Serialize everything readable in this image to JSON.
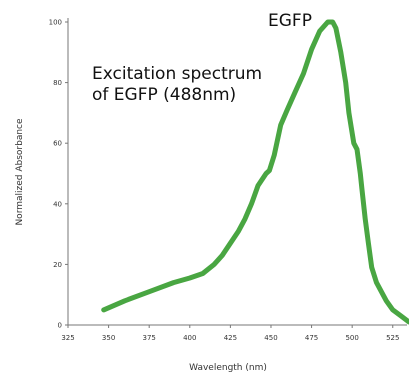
{
  "chart_data": {
    "type": "line",
    "title": "",
    "xlabel": "Wavelength (nm)",
    "ylabel": "Normalized Absorbance",
    "xlim": [
      325,
      535
    ],
    "ylim": [
      0,
      100
    ],
    "x_ticks": [
      325,
      350,
      375,
      400,
      425,
      450,
      475,
      500,
      525
    ],
    "y_ticks": [
      0,
      20,
      40,
      60,
      80,
      100
    ],
    "x_tick_labels": [
      "325",
      "350",
      "375",
      "400",
      "425",
      "450",
      "475",
      "500",
      "525"
    ],
    "y_tick_labels": [
      "0",
      "20",
      "40",
      "60",
      "80",
      "100"
    ],
    "grid": false,
    "legend": "none",
    "series": [
      {
        "name": "EGFP",
        "color": "#49a642",
        "x": [
          347,
          360,
          375,
          390,
          400,
          408,
          415,
          420,
          425,
          430,
          434,
          438,
          442,
          447,
          449,
          452,
          456,
          460,
          465,
          470,
          475,
          480,
          485,
          488,
          490,
          493,
          496,
          498,
          501,
          503,
          505,
          506,
          508,
          510,
          512,
          515,
          518,
          521,
          525,
          530,
          535
        ],
        "values": [
          5,
          8,
          11,
          14,
          15.5,
          17,
          20,
          23,
          27,
          31,
          35,
          40,
          46,
          50,
          51,
          56,
          66,
          71,
          77,
          83,
          91,
          97,
          100,
          100,
          98,
          90,
          80,
          70,
          60,
          58,
          50,
          45,
          35,
          27,
          19,
          14,
          11,
          8,
          5,
          3,
          1
        ]
      }
    ],
    "annotations": [
      {
        "id": "series-label",
        "text": "EGFP"
      },
      {
        "id": "caption-line1",
        "text": "Excitation spectrum"
      },
      {
        "id": "caption-line2",
        "text": "of EGFP (488nm)"
      }
    ]
  }
}
